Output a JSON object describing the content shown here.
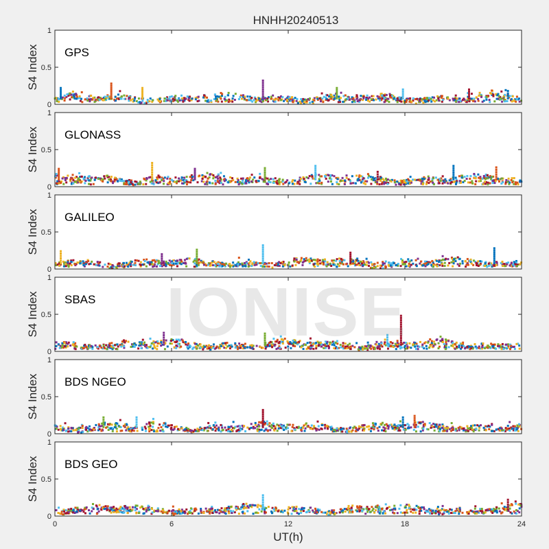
{
  "figure_title": "HNHH20240513",
  "watermark": "IONISE",
  "chart_data": {
    "type": "scatter",
    "title": "HNHH20240513",
    "xlabel": "UT(h)",
    "ylabel": "S4 Index",
    "xlim": [
      0,
      24
    ],
    "ylim": [
      0,
      1
    ],
    "xticks": [
      "0",
      "6",
      "12",
      "18",
      "24"
    ],
    "yticks": [
      "0",
      "0.5",
      "1"
    ],
    "grid": false,
    "colors": [
      "#0072bd",
      "#d95319",
      "#edb120",
      "#7e2f8e",
      "#77ac30",
      "#4dbeee",
      "#a2142f"
    ],
    "panels": [
      {
        "label": "GPS",
        "baseline": 0.08,
        "spikes": [
          {
            "x": 0.3,
            "y": 0.22
          },
          {
            "x": 2.9,
            "y": 0.28
          },
          {
            "x": 4.5,
            "y": 0.22
          },
          {
            "x": 10.7,
            "y": 0.32
          },
          {
            "x": 14.5,
            "y": 0.22
          },
          {
            "x": 17.9,
            "y": 0.2
          },
          {
            "x": 21.3,
            "y": 0.2
          },
          {
            "x": 23.3,
            "y": 0.18
          }
        ]
      },
      {
        "label": "GLONASS",
        "baseline": 0.1,
        "spikes": [
          {
            "x": 0.2,
            "y": 0.24
          },
          {
            "x": 5.0,
            "y": 0.32
          },
          {
            "x": 7.2,
            "y": 0.24
          },
          {
            "x": 10.8,
            "y": 0.25
          },
          {
            "x": 13.4,
            "y": 0.28
          },
          {
            "x": 16.6,
            "y": 0.2
          },
          {
            "x": 20.5,
            "y": 0.28
          },
          {
            "x": 22.7,
            "y": 0.26
          }
        ]
      },
      {
        "label": "GALILEO",
        "baseline": 0.08,
        "spikes": [
          {
            "x": 0.3,
            "y": 0.24
          },
          {
            "x": 5.5,
            "y": 0.2
          },
          {
            "x": 7.3,
            "y": 0.26
          },
          {
            "x": 10.7,
            "y": 0.32
          },
          {
            "x": 15.2,
            "y": 0.22
          },
          {
            "x": 22.6,
            "y": 0.28
          }
        ]
      },
      {
        "label": "SBAS",
        "baseline": 0.09,
        "spikes": [
          {
            "x": 5.6,
            "y": 0.25
          },
          {
            "x": 10.8,
            "y": 0.24
          },
          {
            "x": 17.1,
            "y": 0.22
          },
          {
            "x": 17.8,
            "y": 0.48
          }
        ]
      },
      {
        "label": "BDS NGEO",
        "baseline": 0.09,
        "spikes": [
          {
            "x": 2.5,
            "y": 0.22
          },
          {
            "x": 4.2,
            "y": 0.22
          },
          {
            "x": 10.7,
            "y": 0.32
          },
          {
            "x": 17.9,
            "y": 0.22
          },
          {
            "x": 18.5,
            "y": 0.24
          }
        ]
      },
      {
        "label": "BDS GEO",
        "baseline": 0.09,
        "spikes": [
          {
            "x": 10.7,
            "y": 0.28
          },
          {
            "x": 23.3,
            "y": 0.22
          }
        ]
      }
    ]
  }
}
